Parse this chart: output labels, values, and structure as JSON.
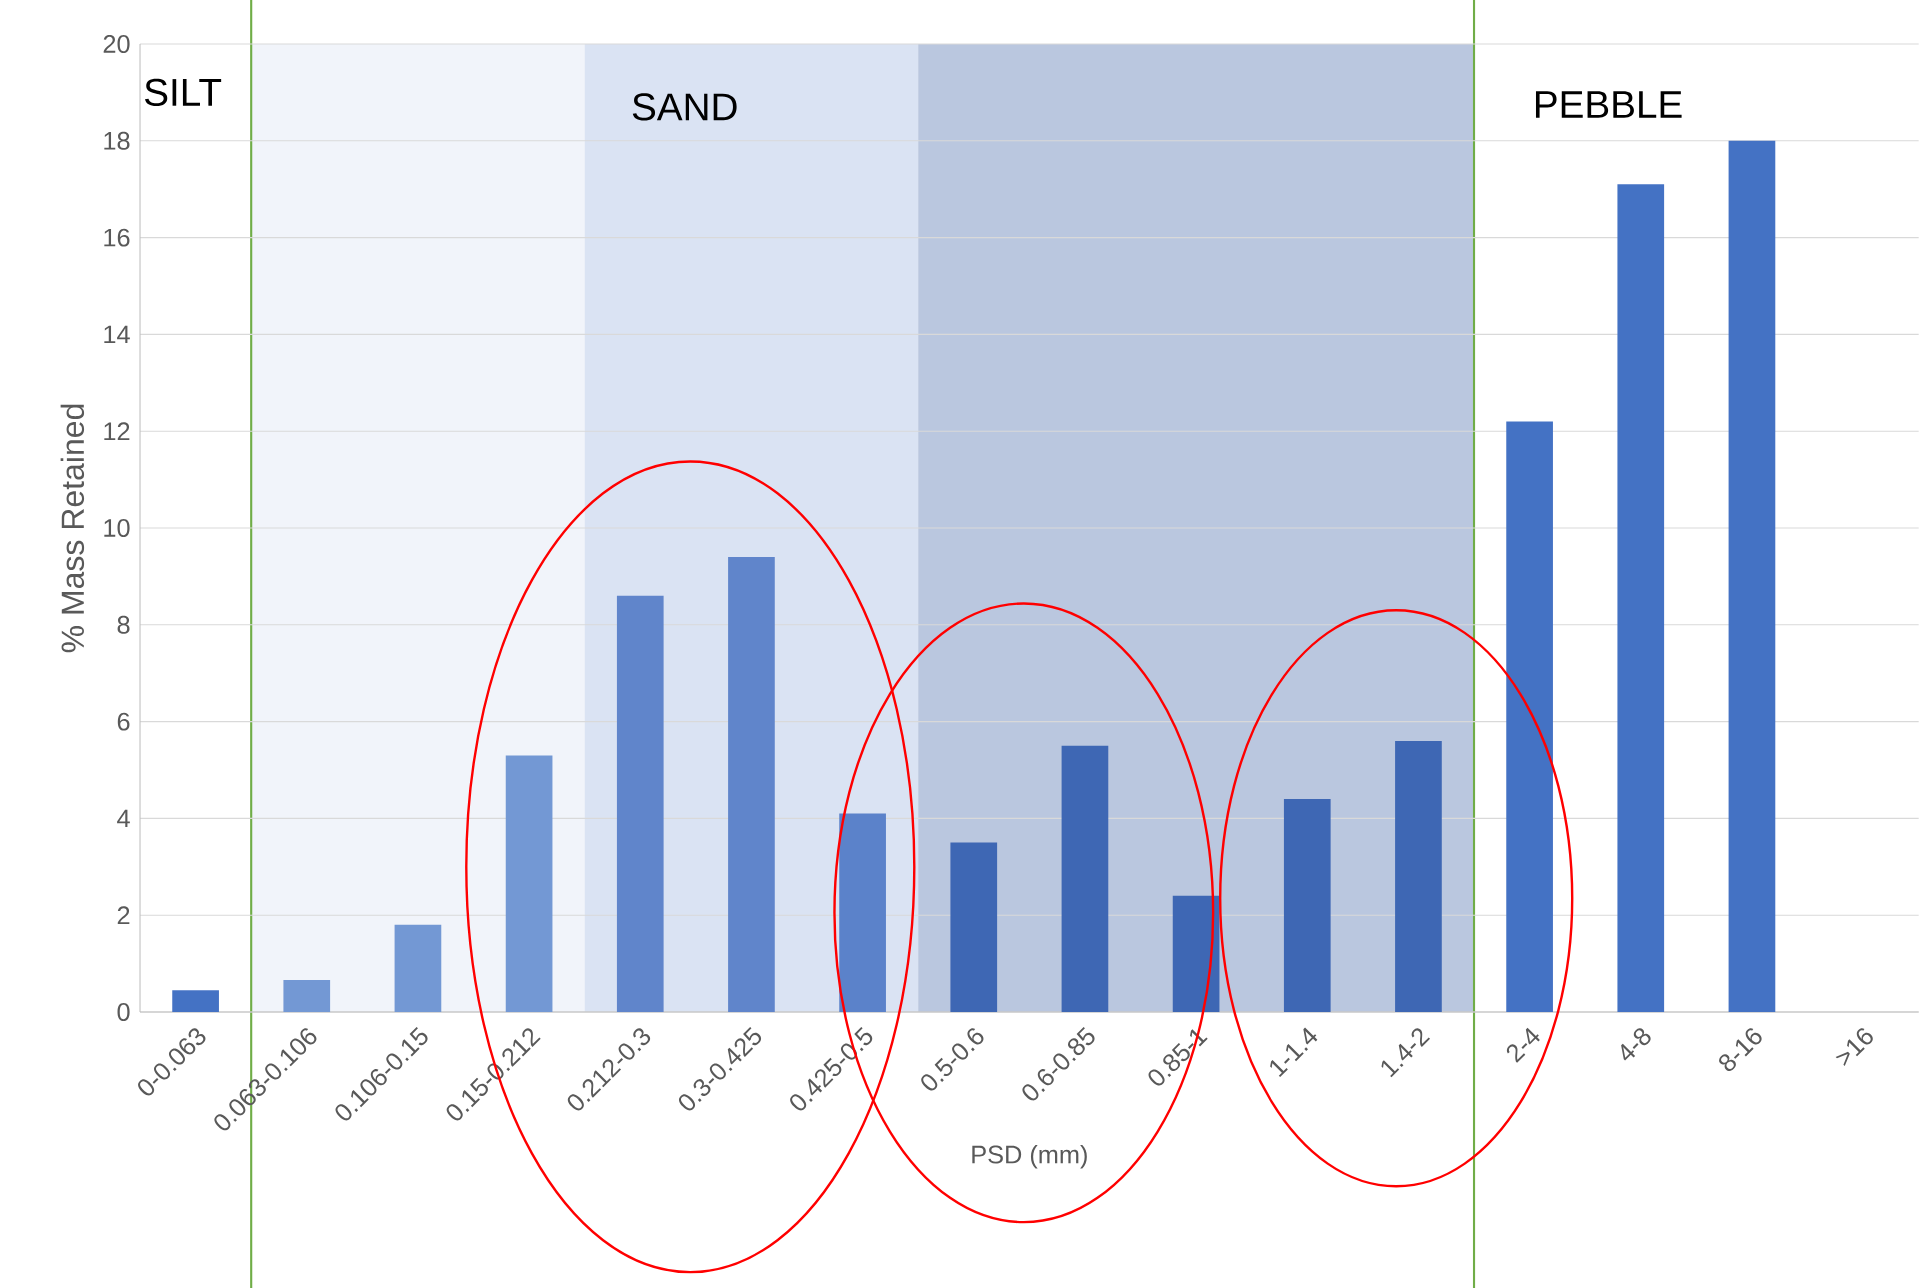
{
  "chart_data": {
    "type": "bar",
    "xlabel": "PSD (mm)",
    "ylabel": "% Mass Retained",
    "categories": [
      "0-0.063",
      "0.063-0.106",
      "0.106-0.15",
      "0.15-0.212",
      "0.212-0.3",
      "0.3-0.425",
      "0.425-0.5",
      "0.5-0.6",
      "0.6-0.85",
      "0.85-1",
      "1-1.4",
      "1.4-2",
      "2-4",
      "4-8",
      "8-16",
      ">16"
    ],
    "values": [
      0.45,
      0.66,
      1.8,
      5.3,
      8.6,
      9.4,
      4.1,
      3.5,
      5.5,
      2.4,
      4.4,
      5.6,
      12.2,
      17.1,
      18.0,
      null
    ],
    "colors": [
      "#4472c4",
      "#7398d4",
      "#7398d4",
      "#7398d4",
      "#6085cb",
      "#6085cb",
      "#5b82ca",
      "#3e67b4",
      "#3e67b4",
      "#3e67b4",
      "#3e67b4",
      "#3e67b4",
      "#4472c4",
      "#4472c4",
      "#4472c4",
      "#4472c4"
    ],
    "ylim": [
      0,
      20
    ],
    "yticks": [
      0,
      2,
      4,
      6,
      8,
      10,
      12,
      14,
      16,
      18,
      20
    ],
    "grid": "y",
    "annotations": [
      "SILT",
      "SAND",
      "PEBBLE"
    ]
  }
}
